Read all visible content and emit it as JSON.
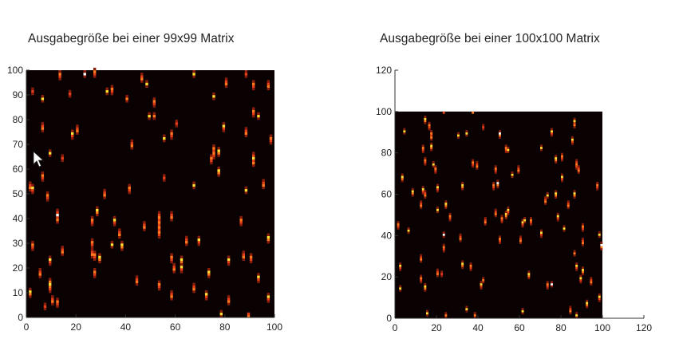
{
  "chart_data": [
    {
      "type": "heatmap",
      "title": "Ausgabegröße bei einer 99x99 Matrix",
      "xlim": [
        0,
        100
      ],
      "ylim": [
        0,
        100
      ],
      "xticks": [
        0,
        20,
        40,
        60,
        80,
        100
      ],
      "yticks": [
        0,
        10,
        20,
        30,
        40,
        50,
        60,
        70,
        80,
        90,
        100
      ],
      "colormap": "hot",
      "background": "#0a0202",
      "streaks_x_y_length_tone": [
        [
          13,
          96,
          4,
          "r"
        ],
        [
          23,
          97,
          3,
          "w"
        ],
        [
          27,
          97,
          4,
          "r"
        ],
        [
          46,
          95,
          4,
          "r"
        ],
        [
          48,
          93,
          3,
          "y"
        ],
        [
          67,
          97,
          3,
          "y"
        ],
        [
          88,
          97,
          3,
          "r"
        ],
        [
          80,
          93,
          4,
          "r"
        ],
        [
          91,
          92,
          4,
          "r"
        ],
        [
          97,
          92,
          4,
          "r"
        ],
        [
          2,
          90,
          3,
          "r"
        ],
        [
          6,
          87,
          3,
          "y"
        ],
        [
          17,
          89,
          3,
          "r"
        ],
        [
          32,
          90,
          3,
          "y"
        ],
        [
          34,
          90,
          4,
          "r"
        ],
        [
          40,
          87,
          3,
          "r"
        ],
        [
          51,
          85,
          4,
          "r"
        ],
        [
          75,
          88,
          3,
          "y"
        ],
        [
          49,
          80,
          3,
          "y"
        ],
        [
          51,
          80,
          3,
          "r"
        ],
        [
          91,
          81,
          4,
          "r"
        ],
        [
          93,
          80,
          3,
          "y"
        ],
        [
          60,
          77,
          3,
          "r"
        ],
        [
          6,
          75,
          4,
          "r"
        ],
        [
          18,
          72,
          4,
          "y"
        ],
        [
          20,
          74,
          4,
          "r"
        ],
        [
          58,
          72,
          4,
          "r"
        ],
        [
          55,
          71,
          3,
          "y"
        ],
        [
          79,
          75,
          4,
          "y"
        ],
        [
          88,
          73,
          4,
          "r"
        ],
        [
          98,
          70,
          4,
          "r"
        ],
        [
          9,
          65,
          3,
          "y"
        ],
        [
          14,
          63,
          3,
          "r"
        ],
        [
          42,
          68,
          4,
          "r"
        ],
        [
          75,
          64,
          6,
          "r"
        ],
        [
          77,
          65,
          4,
          "y"
        ],
        [
          74,
          62,
          4,
          "r"
        ],
        [
          91,
          61,
          6,
          "y"
        ],
        [
          6,
          55,
          4,
          "r"
        ],
        [
          77,
          57,
          4,
          "y"
        ],
        [
          55,
          55,
          3,
          "r"
        ],
        [
          1,
          51,
          4,
          "r"
        ],
        [
          2,
          50,
          4,
          "y"
        ],
        [
          67,
          52,
          3,
          "y"
        ],
        [
          88,
          50,
          3,
          "y"
        ],
        [
          95,
          52,
          4,
          "r"
        ],
        [
          8,
          47,
          4,
          "r"
        ],
        [
          31,
          48,
          4,
          "r"
        ],
        [
          41,
          50,
          4,
          "r"
        ],
        [
          12,
          38,
          6,
          "w"
        ],
        [
          26,
          37,
          4,
          "r"
        ],
        [
          28,
          41,
          4,
          "y"
        ],
        [
          35,
          37,
          4,
          "y"
        ],
        [
          47,
          35,
          4,
          "r"
        ],
        [
          53,
          32,
          11,
          "r"
        ],
        [
          58,
          39,
          4,
          "r"
        ],
        [
          86,
          37,
          4,
          "r"
        ],
        [
          37,
          32,
          4,
          "r"
        ],
        [
          34,
          28,
          3,
          "y"
        ],
        [
          38,
          27,
          4,
          "y"
        ],
        [
          2,
          27,
          4,
          "r"
        ],
        [
          14,
          25,
          4,
          "r"
        ],
        [
          26,
          28,
          4,
          "r"
        ],
        [
          64,
          29,
          4,
          "r"
        ],
        [
          69,
          29,
          4,
          "y"
        ],
        [
          97,
          30,
          4,
          "y"
        ],
        [
          9,
          21,
          4,
          "y"
        ],
        [
          26,
          24,
          4,
          "r"
        ],
        [
          27,
          23,
          4,
          "r"
        ],
        [
          29,
          22,
          4,
          "y"
        ],
        [
          58,
          22,
          4,
          "r"
        ],
        [
          62,
          21,
          4,
          "y"
        ],
        [
          81,
          21,
          4,
          "y"
        ],
        [
          87,
          23,
          4,
          "r"
        ],
        [
          90,
          22,
          4,
          "r"
        ],
        [
          5,
          16,
          4,
          "r"
        ],
        [
          27,
          16,
          4,
          "r"
        ],
        [
          59,
          18,
          4,
          "r"
        ],
        [
          62,
          18,
          4,
          "y"
        ],
        [
          73,
          16,
          4,
          "y"
        ],
        [
          9,
          10,
          6,
          "y"
        ],
        [
          44,
          13,
          4,
          "r"
        ],
        [
          53,
          11,
          4,
          "r"
        ],
        [
          67,
          10,
          4,
          "r"
        ],
        [
          93,
          14,
          4,
          "y"
        ],
        [
          1,
          8,
          4,
          "y"
        ],
        [
          7,
          3,
          3,
          "r"
        ],
        [
          10,
          5,
          4,
          "r"
        ],
        [
          12,
          4,
          4,
          "r"
        ],
        [
          58,
          7,
          4,
          "r"
        ],
        [
          72,
          7,
          4,
          "y"
        ],
        [
          81,
          5,
          4,
          "r"
        ],
        [
          97,
          6,
          4,
          "y"
        ],
        [
          78,
          0,
          3,
          "y"
        ],
        [
          89,
          0,
          2,
          "r"
        ]
      ]
    },
    {
      "type": "heatmap",
      "title": "Ausgabegröße bei einer 100x100 Matrix",
      "xlim": [
        0,
        120
      ],
      "ylim": [
        0,
        120
      ],
      "xticks": [
        0,
        20,
        40,
        60,
        80,
        100,
        120
      ],
      "yticks": [
        0,
        20,
        40,
        60,
        80,
        100,
        120
      ],
      "image_extent": [
        0,
        100
      ],
      "colormap": "hot",
      "background": "#0a0202",
      "streaks_x_y_length_tone": [
        [
          4,
          89,
          3,
          "y"
        ],
        [
          14,
          94,
          4,
          "y"
        ],
        [
          16,
          91,
          4,
          "r"
        ],
        [
          17,
          86,
          5,
          "r"
        ],
        [
          13,
          80,
          4,
          "r"
        ],
        [
          17,
          81,
          4,
          "y"
        ],
        [
          14,
          74,
          4,
          "r"
        ],
        [
          18,
          73,
          3,
          "y"
        ],
        [
          19,
          70,
          4,
          "r"
        ],
        [
          3,
          66,
          4,
          "y"
        ],
        [
          30,
          87,
          3,
          "y"
        ],
        [
          34,
          88,
          3,
          "y"
        ],
        [
          42,
          91,
          3,
          "r"
        ],
        [
          50,
          87,
          4,
          "w"
        ],
        [
          53,
          80,
          4,
          "r"
        ],
        [
          54,
          80,
          3,
          "y"
        ],
        [
          75,
          88,
          4,
          "y"
        ],
        [
          86,
          92,
          5,
          "y"
        ],
        [
          85,
          84,
          4,
          "y"
        ],
        [
          70,
          81,
          3,
          "y"
        ],
        [
          80,
          76,
          4,
          "r"
        ],
        [
          77,
          75,
          4,
          "y"
        ],
        [
          87,
          72,
          5,
          "r"
        ],
        [
          88,
          70,
          4,
          "r"
        ],
        [
          37,
          73,
          4,
          "r"
        ],
        [
          39,
          72,
          4,
          "r"
        ],
        [
          48,
          70,
          4,
          "r"
        ],
        [
          59,
          70,
          4,
          "r"
        ],
        [
          56,
          68,
          3,
          "y"
        ],
        [
          8,
          59,
          4,
          "y"
        ],
        [
          13,
          60,
          4,
          "y"
        ],
        [
          14,
          58,
          4,
          "r"
        ],
        [
          20,
          61,
          4,
          "y"
        ],
        [
          32,
          62,
          4,
          "y"
        ],
        [
          47,
          62,
          4,
          "r"
        ],
        [
          49,
          63,
          4,
          "w"
        ],
        [
          73,
          58,
          3,
          "y"
        ],
        [
          77,
          58,
          4,
          "y"
        ],
        [
          80,
          66,
          4,
          "y"
        ],
        [
          86,
          58,
          4,
          "y"
        ],
        [
          97,
          62,
          4,
          "r"
        ],
        [
          12,
          53,
          4,
          "r"
        ],
        [
          20,
          51,
          3,
          "y"
        ],
        [
          24,
          53,
          4,
          "y"
        ],
        [
          26,
          47,
          4,
          "r"
        ],
        [
          48,
          49,
          4,
          "r"
        ],
        [
          51,
          46,
          4,
          "r"
        ],
        [
          53,
          48,
          4,
          "y"
        ],
        [
          54,
          50,
          4,
          "y"
        ],
        [
          43,
          45,
          4,
          "r"
        ],
        [
          61,
          44,
          4,
          "y"
        ],
        [
          62,
          46,
          3,
          "y"
        ],
        [
          65,
          45,
          4,
          "r"
        ],
        [
          72,
          55,
          4,
          "r"
        ],
        [
          78,
          47,
          4,
          "y"
        ],
        [
          83,
          53,
          4,
          "r"
        ],
        [
          1,
          43,
          4,
          "r"
        ],
        [
          6,
          41,
          3,
          "y"
        ],
        [
          23,
          39,
          3,
          "w"
        ],
        [
          31,
          37,
          4,
          "r"
        ],
        [
          50,
          36,
          4,
          "r"
        ],
        [
          60,
          36,
          4,
          "r"
        ],
        [
          70,
          39,
          4,
          "y"
        ],
        [
          81,
          42,
          3,
          "y"
        ],
        [
          90,
          42,
          4,
          "r"
        ],
        [
          90,
          35,
          4,
          "r"
        ],
        [
          98,
          39,
          3,
          "y"
        ],
        [
          99,
          33,
          4,
          "w"
        ],
        [
          23,
          32,
          4,
          "r"
        ],
        [
          12,
          27,
          4,
          "r"
        ],
        [
          2,
          23,
          4,
          "y"
        ],
        [
          20,
          20,
          4,
          "r"
        ],
        [
          22,
          20,
          3,
          "r"
        ],
        [
          32,
          24,
          4,
          "y"
        ],
        [
          36,
          23,
          4,
          "r"
        ],
        [
          86,
          30,
          3,
          "r"
        ],
        [
          87,
          23,
          4,
          "y"
        ],
        [
          90,
          21,
          4,
          "y"
        ],
        [
          12,
          17,
          4,
          "r"
        ],
        [
          14,
          13,
          4,
          "y"
        ],
        [
          2,
          13,
          3,
          "y"
        ],
        [
          42,
          17,
          3,
          "r"
        ],
        [
          41,
          14,
          4,
          "y"
        ],
        [
          64,
          19,
          4,
          "y"
        ],
        [
          73,
          14,
          4,
          "r"
        ],
        [
          75,
          15,
          3,
          "w"
        ],
        [
          89,
          17,
          4,
          "y"
        ],
        [
          94,
          16,
          4,
          "r"
        ],
        [
          98,
          8,
          4,
          "y"
        ],
        [
          92,
          5,
          4,
          "y"
        ],
        [
          15,
          1,
          3,
          "y"
        ],
        [
          24,
          0,
          3,
          "r"
        ],
        [
          34,
          3,
          3,
          "y"
        ],
        [
          38,
          0,
          3,
          "r"
        ],
        [
          61,
          2,
          3,
          "y"
        ],
        [
          84,
          2,
          4,
          "r"
        ],
        [
          87,
          0,
          3,
          "y"
        ],
        [
          23,
          99,
          1,
          "r"
        ],
        [
          37,
          99,
          1,
          "r"
        ]
      ]
    }
  ],
  "colors": {
    "dark": "#8a1c0a",
    "red": "#e5401a",
    "orange": "#ff7a1e",
    "yellow": "#ffe234",
    "white": "#ffffff"
  },
  "cursor_icon": "arrow-pointer-icon"
}
